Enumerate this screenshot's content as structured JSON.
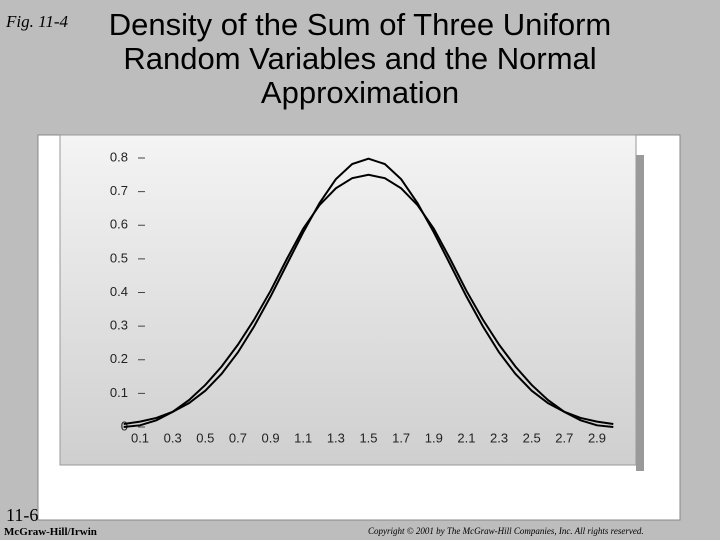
{
  "fig_label": "Fig. 11-4",
  "chart_data": {
    "type": "line",
    "title": "Density of the Sum of Three Uniform Random Variables and the Normal Approximation",
    "x": [
      0,
      0.1,
      0.2,
      0.3,
      0.4,
      0.5,
      0.6,
      0.7,
      0.8,
      0.9,
      1.0,
      1.1,
      1.2,
      1.3,
      1.4,
      1.5,
      1.6,
      1.7,
      1.8,
      1.9,
      2.0,
      2.1,
      2.2,
      2.3,
      2.4,
      2.5,
      2.6,
      2.7,
      2.8,
      2.9,
      3.0
    ],
    "series": [
      {
        "color": "#000000",
        "values": [
          0,
          0.005,
          0.02,
          0.045,
          0.08,
          0.125,
          0.18,
          0.245,
          0.32,
          0.405,
          0.5,
          0.59,
          0.66,
          0.71,
          0.74,
          0.75,
          0.74,
          0.71,
          0.66,
          0.59,
          0.5,
          0.405,
          0.32,
          0.245,
          0.18,
          0.125,
          0.08,
          0.045,
          0.02,
          0.005,
          0
        ]
      },
      {
        "color": "#000000",
        "values": [
          0.009,
          0.016,
          0.027,
          0.045,
          0.071,
          0.108,
          0.158,
          0.222,
          0.3,
          0.388,
          0.484,
          0.579,
          0.666,
          0.737,
          0.782,
          0.798,
          0.782,
          0.737,
          0.666,
          0.579,
          0.484,
          0.388,
          0.3,
          0.222,
          0.158,
          0.108,
          0.071,
          0.045,
          0.027,
          0.016,
          0.009
        ]
      }
    ],
    "xlim": [
      0,
      3
    ],
    "ylim": [
      0,
      0.8
    ],
    "xticks": [
      0.1,
      0.3,
      0.5,
      0.7,
      0.9,
      1.1,
      1.3,
      1.5,
      1.7,
      1.9,
      2.1,
      2.3,
      2.5,
      2.7,
      2.9
    ],
    "yticks": [
      0,
      0.1,
      0.2,
      0.3,
      0.4,
      0.5,
      0.6,
      0.7,
      0.8
    ]
  },
  "footer": {
    "page": "11-6",
    "publisher": "McGraw-Hill/Irwin",
    "copyright": "Copyright © 2001 by The McGraw-Hill Companies, Inc. All rights reserved."
  }
}
